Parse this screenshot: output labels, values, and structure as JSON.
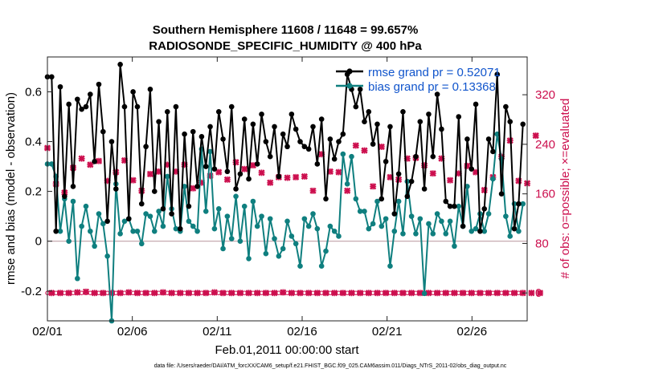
{
  "chart_data": {
    "type": "line",
    "title_line1": "Southern Hemisphere 11608 / 11648 = 99.657%",
    "title_line2": "RADIOSONDE_SPECIFIC_HUMIDITY @ 400 hPa",
    "xlabel": "Feb.01,2011 00:00:00 start",
    "ylabel_left": "rmse and bias (model - observation)",
    "ylabel_right": "# of obs: o=possible; ×=evaluated",
    "footer": "data file: /Users/raeder/DAI/ATM_forcXX/CAM6_setup/f.e21.FHIST_BGC.f09_025.CAM6assim.011/Diags_NTrS_2011-02/obs_diag_output.nc",
    "x_range_days": [
      0,
      28.25
    ],
    "x_ticks": [
      0,
      5,
      10,
      15,
      20,
      25
    ],
    "x_tick_labels": [
      "02/01",
      "02/06",
      "02/11",
      "02/16",
      "02/21",
      "02/26"
    ],
    "ylim_left": [
      -0.32,
      0.74
    ],
    "y_ticks_left": [
      -0.2,
      0,
      0.2,
      0.4,
      0.6
    ],
    "y_tick_labels_left": [
      "-0.2",
      "0",
      "0.2",
      "0.4",
      "0.6"
    ],
    "ylim_right": [
      -45,
      381
    ],
    "y_ticks_right": [
      0,
      80,
      160,
      240,
      320
    ],
    "y_tick_labels_right": [
      "0",
      "80",
      "160",
      "240",
      "320"
    ],
    "zero_line": 0,
    "legend": {
      "position": "top-right",
      "rmse_label": "rmse grand pr = 0.52071",
      "bias_label": "bias grand pr = 0.13368"
    },
    "colors": {
      "rmse": "#000000",
      "bias": "#0f7f7f",
      "obs": "#cc0f4e",
      "zero": "#c0a0a8",
      "legend_text": "#1155cc"
    },
    "series": [
      {
        "name": "rmse",
        "values": [
          0.66,
          0.66,
          0.04,
          0.62,
          0.18,
          0.55,
          0.22,
          0.57,
          0.53,
          0.54,
          0.59,
          0.32,
          0.63,
          0.44,
          0.08,
          0.4,
          0.21,
          0.71,
          0.54,
          0.09,
          0.6,
          0.54,
          0.15,
          0.38,
          0.61,
          0.2,
          0.48,
          0.13,
          0.52,
          0.11,
          0.54,
          0.05,
          0.43,
          0.14,
          0.44,
          0.22,
          0.42,
          0.3,
          0.46,
          0.29,
          0.52,
          0.41,
          0.28,
          0.54,
          0.21,
          0.27,
          0.49,
          0.25,
          0.47,
          0.31,
          0.51,
          0.4,
          0.34,
          0.46,
          0.26,
          0.43,
          0.38,
          0.51,
          0.45,
          0.4,
          0.38,
          0.37,
          0.46,
          0.31,
          0.49,
          0.17,
          0.41,
          0.33,
          0.4,
          0.43,
          0.67,
          0.61,
          0.54,
          0.61,
          0.48,
          0.52,
          0.39,
          0.47,
          0.17,
          0.32,
          0.46,
          0.11,
          0.27,
          0.52,
          0.18,
          0.24,
          0.34,
          0.48,
          0.21,
          0.51,
          0.34,
          0.59,
          0.45,
          0.16,
          0.14,
          0.14,
          0.5,
          0.06,
          0.41,
          0.29,
          0.55,
          0.04,
          0.13,
          0.41,
          0.36,
          0.67,
          0.19,
          0.54,
          0.48,
          0.05,
          0.15,
          0.47
        ]
      },
      {
        "name": "bias",
        "values": [
          0.31,
          0.31,
          0.26,
          0.04,
          0.17,
          0.0,
          0.16,
          -0.15,
          0.06,
          0.14,
          0.04,
          -0.02,
          0.11,
          0.07,
          -0.06,
          -0.33,
          0.23,
          0.03,
          0.08,
          0.09,
          0.04,
          0.04,
          -0.01,
          0.11,
          0.1,
          0.04,
          0.12,
          0.06,
          0.26,
          0.13,
          0.05,
          0.04,
          0.22,
          0.08,
          0.06,
          0.04,
          0.37,
          0.12,
          0.36,
          0.05,
          0.13,
          -0.03,
          0.1,
          0.01,
          0.18,
          0.0,
          0.14,
          -0.07,
          0.16,
          0.06,
          0.1,
          -0.05,
          0.09,
          0.01,
          -0.06,
          -0.03,
          0.08,
          0.02,
          -0.01,
          -0.1,
          0.09,
          0.06,
          0.11,
          0.05,
          -0.1,
          -0.04,
          0.06,
          0.04,
          0.02,
          0.35,
          0.23,
          0.34,
          0.17,
          0.12,
          0.12,
          0.05,
          0.07,
          0.16,
          0.06,
          0.09,
          -0.1,
          0.04,
          0.16,
          0.03,
          0.24,
          0.1,
          0.03,
          0.09,
          -0.21,
          0.07,
          0.03,
          0.11,
          0.08,
          0.03,
          0.08,
          -0.02,
          0.14,
          0.06,
          0.22,
          0.04,
          0.05,
          0.11,
          0.04,
          0.11,
          0.25,
          0.43,
          0.33,
          0.1,
          0.02,
          0.15,
          0.04,
          0.15
        ]
      },
      {
        "name": "obs_possible",
        "values": [
          0,
          0,
          0,
          0,
          0,
          0,
          0,
          0,
          0,
          0,
          0,
          0,
          0,
          0,
          0,
          0,
          0,
          0,
          0,
          0,
          0,
          0,
          0,
          0,
          0,
          0,
          0,
          0,
          0,
          0,
          0,
          0,
          0,
          0,
          0,
          0,
          0,
          0,
          0,
          0,
          0,
          0,
          0,
          0,
          0,
          0,
          0,
          0,
          0,
          0,
          0,
          0,
          0,
          0,
          0,
          0,
          0,
          0,
          0,
          0,
          0,
          0,
          0,
          0,
          0,
          0,
          0,
          0,
          0,
          0,
          0,
          0,
          0,
          0,
          0,
          0,
          0,
          0,
          0,
          0,
          0,
          0,
          0,
          0,
          0,
          0,
          0,
          0,
          0,
          0,
          0,
          0,
          0,
          0,
          0,
          0,
          0,
          0,
          0,
          0,
          0,
          0,
          0,
          0,
          0,
          0,
          0,
          0,
          0,
          0,
          0,
          0
        ]
      },
      {
        "name": "obs_evaluated",
        "even_values": [
          234,
          176,
          162,
          202,
          217,
          207,
          213,
          181,
          195,
          214,
          182,
          165,
          192,
          196,
          207,
          196,
          207,
          169,
          178,
          189,
          195,
          183,
          211,
          200,
          206,
          194,
          178,
          187,
          186,
          187,
          188,
          165,
          224,
          196,
          195,
          165,
          238,
          230,
          172,
          236,
          187,
          183,
          217,
          218,
          206,
          193,
          217,
          182,
          193,
          205,
          195,
          166,
          187,
          220,
          246,
          181,
          177,
          254
        ],
        "odd_values": [
          0,
          0,
          0,
          1,
          2,
          0,
          0,
          0,
          0,
          1,
          0,
          0,
          0,
          1,
          0,
          0,
          0,
          0,
          0,
          1,
          0,
          0,
          0,
          0,
          0,
          0,
          0,
          1,
          0,
          0,
          0,
          0,
          0,
          0,
          0,
          0,
          0,
          0,
          0,
          0,
          0,
          0,
          0,
          0,
          0,
          0,
          0,
          0,
          0,
          0,
          0,
          0,
          0,
          0,
          0,
          0,
          0,
          0
        ]
      }
    ]
  }
}
